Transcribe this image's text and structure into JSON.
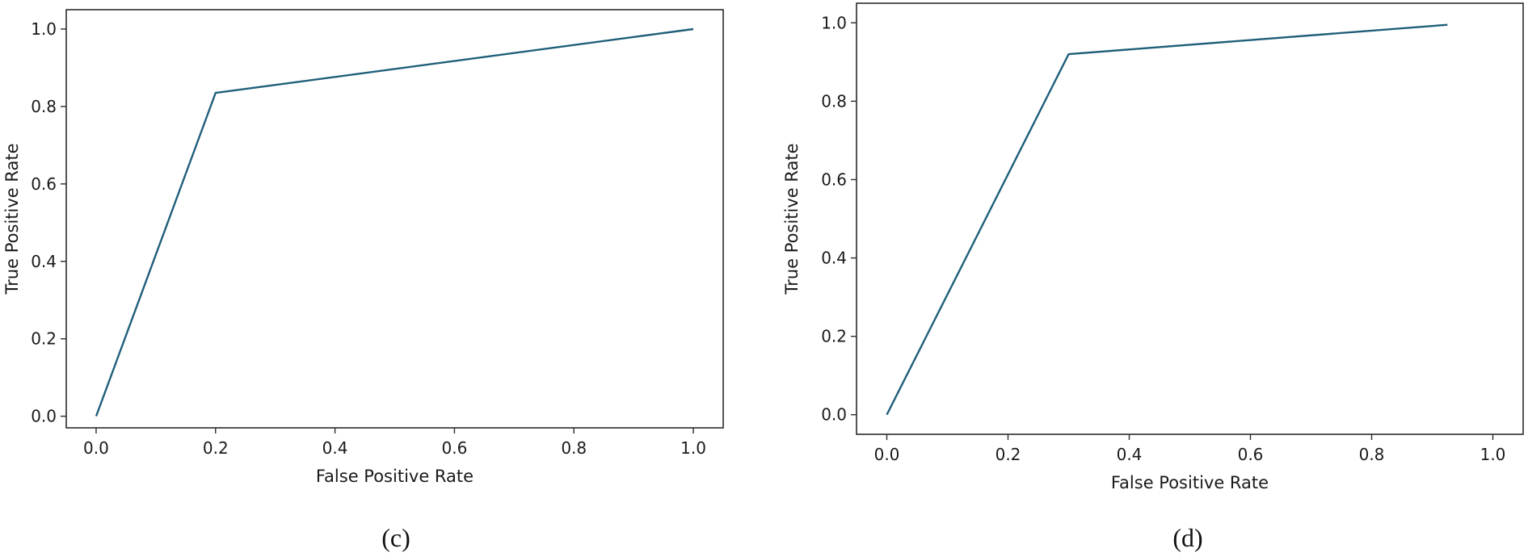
{
  "chart_data": [
    {
      "type": "line",
      "caption": "(c)",
      "xlabel": "False Positive Rate",
      "ylabel": "True Positive Rate",
      "xlim": [
        -0.05,
        1.05
      ],
      "ylim": [
        -0.03,
        1.05
      ],
      "xticks": [
        "0.0",
        "0.2",
        "0.4",
        "0.6",
        "0.8",
        "1.0"
      ],
      "yticks": [
        "0.0",
        "0.2",
        "0.4",
        "0.6",
        "0.8",
        "1.0"
      ],
      "grid": false,
      "series": [
        {
          "x": [
            0.0,
            0.2,
            1.0
          ],
          "y": [
            0.0,
            0.835,
            1.0
          ],
          "color": "#1f5f7a"
        }
      ]
    },
    {
      "type": "line",
      "caption": "(d)",
      "xlabel": "False Positive Rate",
      "ylabel": "True Positive Rate",
      "xlim": [
        -0.05,
        1.05
      ],
      "ylim": [
        -0.05,
        1.05
      ],
      "xticks": [
        "0.0",
        "0.2",
        "0.4",
        "0.6",
        "0.8",
        "1.0"
      ],
      "yticks": [
        "0.0",
        "0.2",
        "0.4",
        "0.6",
        "0.8",
        "1.0"
      ],
      "grid": false,
      "series": [
        {
          "x": [
            0.0,
            0.3,
            0.925
          ],
          "y": [
            0.0,
            0.92,
            0.995
          ],
          "color": "#1f5f7a"
        }
      ]
    }
  ]
}
